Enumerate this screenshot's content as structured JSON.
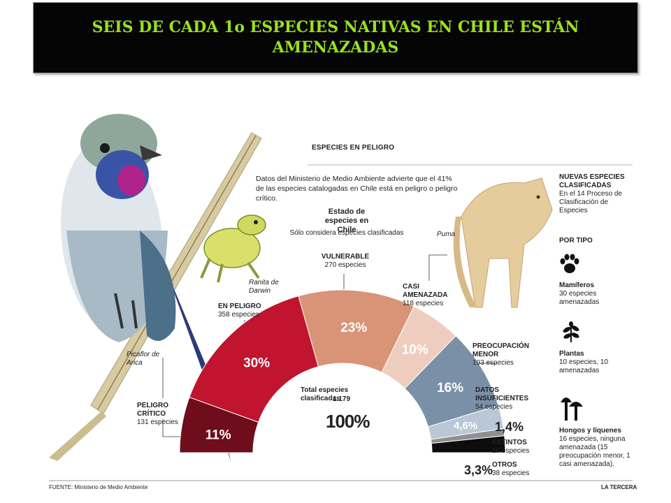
{
  "banner": {
    "title": "SEIS DE CADA 1o ESPECIES NATIVAS EN CHILE ESTÁN AMENAZADAS"
  },
  "infographic": {
    "heading": "ESPECIES EN PELIGRO",
    "intro": "Datos del Ministerio de Medio Ambiente advierte que el 41% de las especies catalogadas en Chile está en peligro o peligro crítico.",
    "state_title": "Estado de especies en Chile",
    "state_subtitle": "Sólo considera especies clasificadas",
    "total_label": "Total especies clasificadas",
    "total_value": "1.179",
    "total_percent": "100%",
    "species_names": {
      "frog": "Ranita de Darwin",
      "bird": "Picaflor de Arica",
      "puma": "Puma"
    },
    "categories": [
      {
        "name": "PELIGRO CRÍTICO",
        "count": "131 especies",
        "percent": "11%"
      },
      {
        "name": "EN PELIGRO",
        "count": "358 especies",
        "percent": "30%"
      },
      {
        "name": "VULNERABLE",
        "count": "270 especies",
        "percent": "23%"
      },
      {
        "name": "CASI AMENAZADA",
        "count": "118 especies",
        "percent": "10%"
      },
      {
        "name": "PREOCUPACIÓN MENOR",
        "count": "193 especies",
        "percent": "16%"
      },
      {
        "name": "DATOS INSUFICIENTES",
        "count": "54 especies",
        "percent": "4,6%"
      },
      {
        "name": "EXTINTOS",
        "count": "16 especies",
        "percent": "1,4%"
      },
      {
        "name": "OTROS",
        "count": "38 especies",
        "percent": "3,3%"
      }
    ],
    "sidebar": {
      "new_title": "NUEVAS ESPECIES CLASIFICADAS",
      "new_text": "En el 14 Proceso de Clasificación de Especies",
      "by_type": "POR TIPO",
      "mammals_title": "Mamíferos",
      "mammals_text": "30 especies amenazadas",
      "plants_title": "Plantas",
      "plants_text": "10 especies, 10 amenazadas",
      "fungi_title": "Hongos y líquenes",
      "fungi_text": "16 especies, ninguna amenazada (15 preocupación menor, 1 casi amenazada)."
    },
    "source": "FUENTE: Ministerio de Medio Ambiente",
    "credit": "LA TERCERA"
  },
  "chart_data": {
    "type": "pie",
    "title": "Estado de especies en Chile",
    "categories": [
      "PELIGRO CRÍTICO",
      "EN PELIGRO",
      "VULNERABLE",
      "CASI AMENAZADA",
      "PREOCUPACIÓN MENOR",
      "DATOS INSUFICIENTES",
      "EXTINTOS",
      "OTROS"
    ],
    "values": [
      11,
      30,
      23,
      10,
      16,
      4.6,
      1.4,
      3.3
    ],
    "counts": [
      131,
      358,
      270,
      118,
      193,
      54,
      16,
      38
    ],
    "colors": [
      "#6e0d1c",
      "#c0142f",
      "#d99377",
      "#efcdbe",
      "#7990a7",
      "#b9c7d6",
      "#8f8f8f",
      "#0d0d0d"
    ],
    "total": 1179
  }
}
